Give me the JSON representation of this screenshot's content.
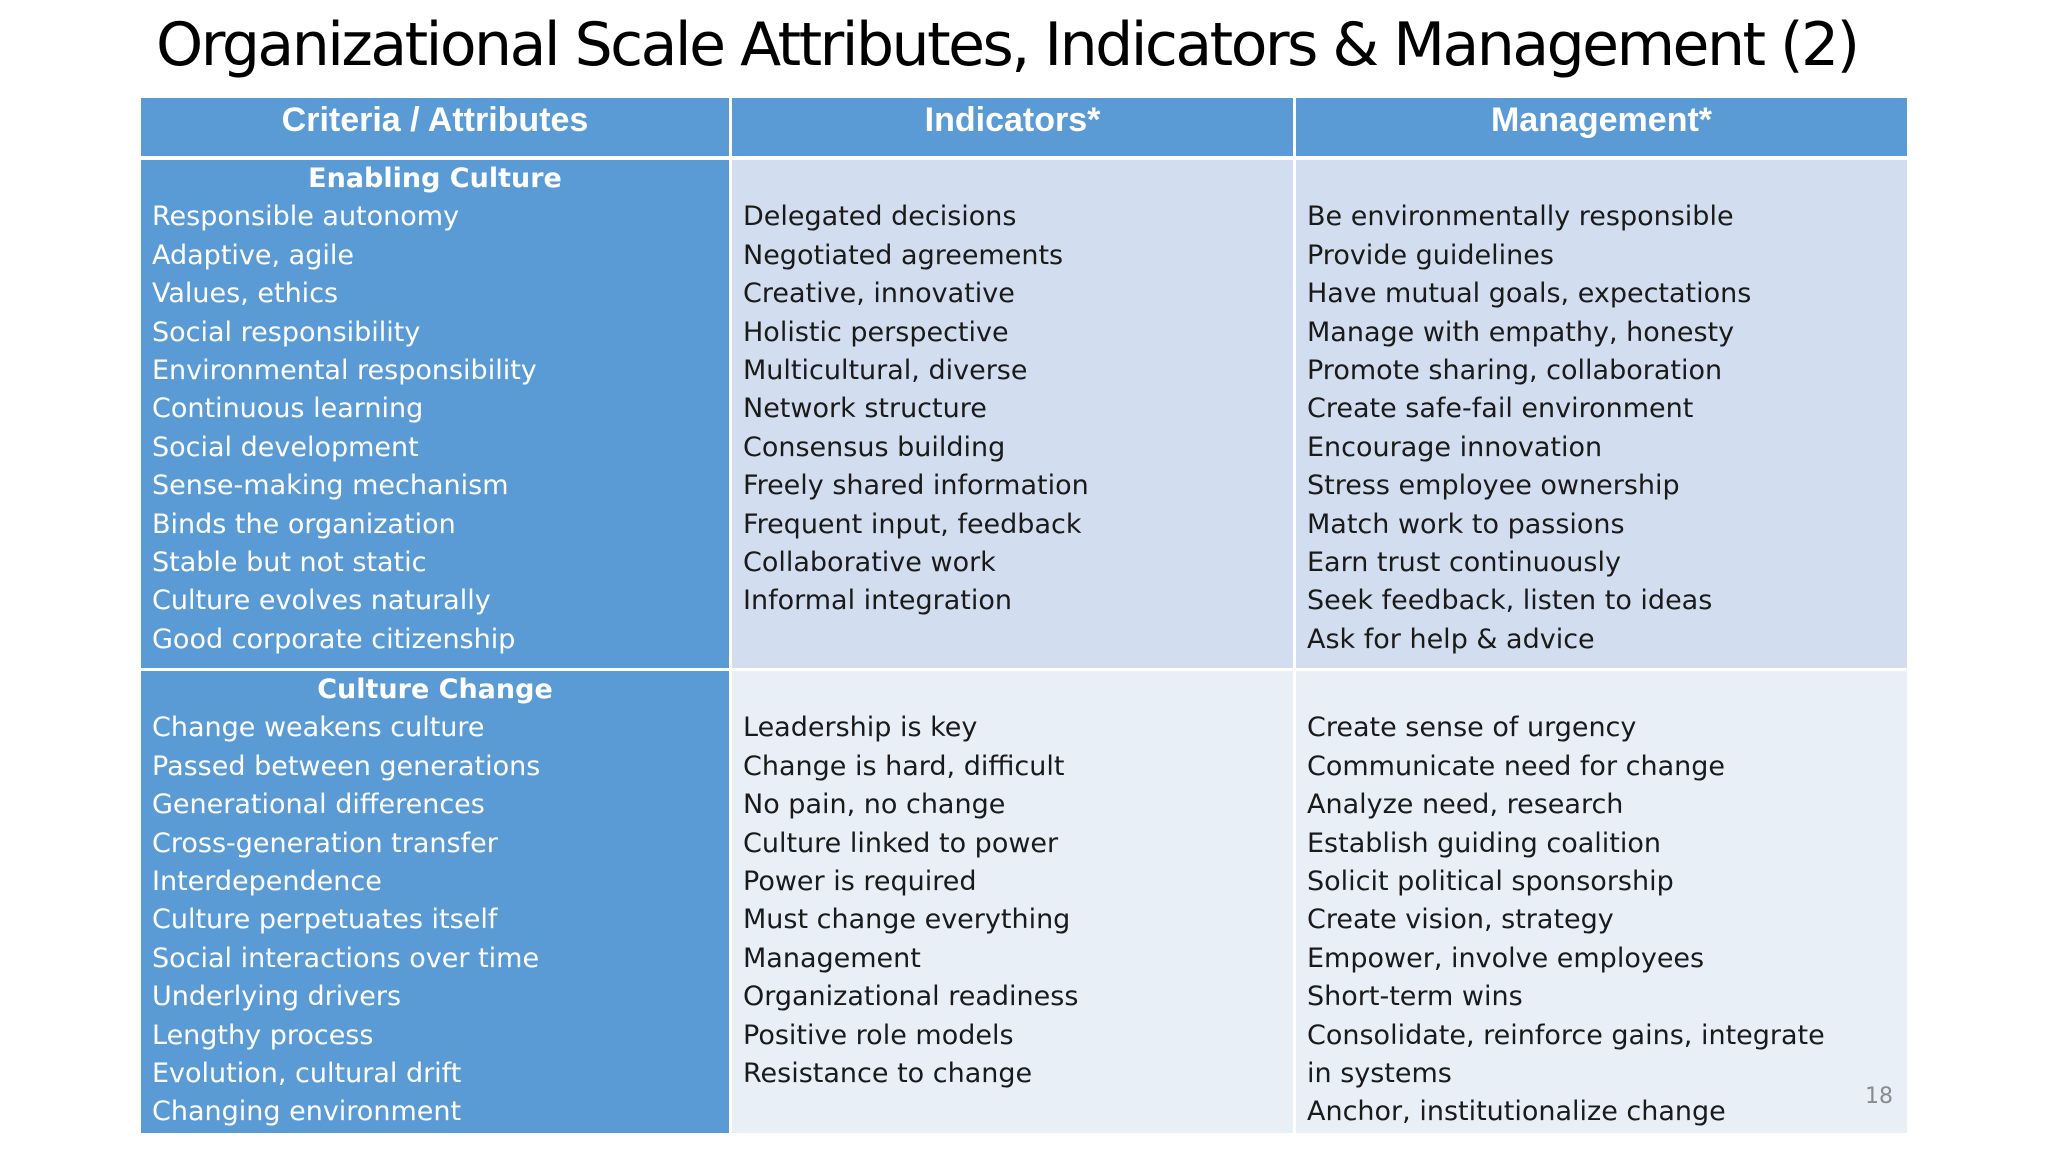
{
  "slide": {
    "title": "Organizational Scale Attributes, Indicators & Management (2)",
    "page_number": "18"
  },
  "table": {
    "headers": [
      "Criteria / Attributes",
      "Indicators*",
      "Management*"
    ],
    "sections": [
      {
        "heading": "Enabling Culture",
        "attributes": [
          "Responsible autonomy",
          "Adaptive, agile",
          "Values, ethics",
          "Social responsibility",
          "Environmental responsibility",
          "Continuous learning",
          "Social development",
          "Sense-making mechanism",
          "Binds the organization",
          "Stable but not static",
          "Culture evolves naturally",
          "Good corporate citizenship"
        ],
        "indicators": [
          "Delegated decisions",
          "Negotiated agreements",
          "Creative, innovative",
          "Holistic perspective",
          "Multicultural, diverse",
          "Network structure",
          "Consensus building",
          "Freely shared information",
          "Frequent input, feedback",
          "Collaborative work",
          "Informal integration"
        ],
        "management": [
          "Be environmentally responsible",
          "Provide guidelines",
          "Have mutual goals, expectations",
          "Manage with empathy, honesty",
          "Promote sharing, collaboration",
          "Create safe-fail environment",
          "Encourage innovation",
          "Stress employee ownership",
          "Match work to passions",
          "Earn trust continuously",
          "Seek feedback, listen to ideas",
          "Ask for help & advice"
        ]
      },
      {
        "heading": "Culture Change",
        "attributes": [
          "Change weakens culture",
          "Passed between generations",
          "Generational differences",
          "Cross-generation transfer",
          "Interdependence",
          "Culture perpetuates itself",
          "Social interactions over time",
          "Underlying drivers",
          "Lengthy process",
          "Evolution, cultural drift",
          "Changing environment"
        ],
        "indicators": [
          "Leadership is key",
          "Change is hard, difficult",
          "No pain, no change",
          "Culture linked to power",
          "Power is required",
          "Must change everything",
          "Management",
          "Organizational readiness",
          "Positive role models",
          "Resistance to change"
        ],
        "management": [
          "Create sense of urgency",
          "Communicate need for change",
          "Analyze need, research",
          "Establish guiding coalition",
          "Solicit political sponsorship",
          "Create vision, strategy",
          "Empower, involve employees",
          "Short-term wins",
          "Consolidate, reinforce gains, integrate in systems",
          "Anchor, institutionalize change"
        ]
      }
    ]
  }
}
